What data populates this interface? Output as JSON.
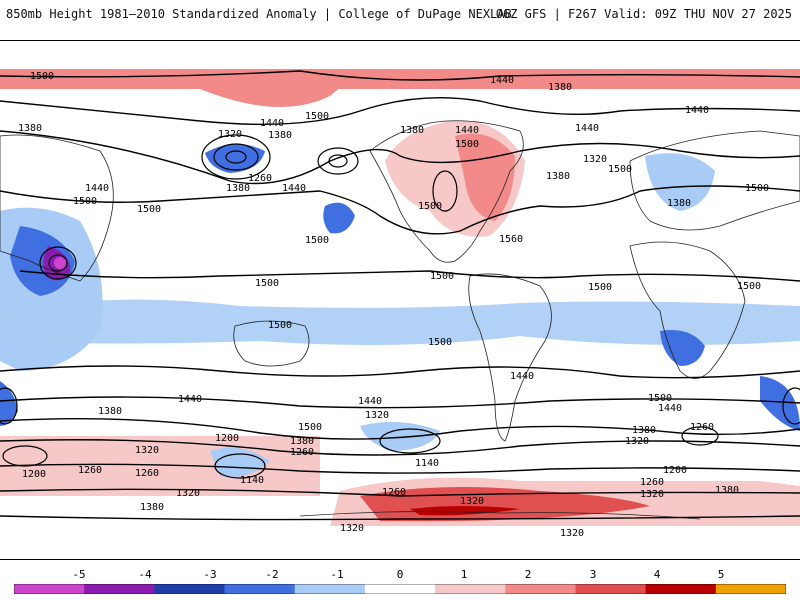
{
  "header": {
    "title": "850mb Height 1981–2010 Standardized Anomaly | College of DuPage NEXLAB",
    "run_info": "06Z GFS | F267 Valid: 09Z THU NOV 27 2025"
  },
  "map": {
    "contour_labels": [
      "1500",
      "1380",
      "1440",
      "1380",
      "1320",
      "1440",
      "1380",
      "1260",
      "1500",
      "1380",
      "1440",
      "1500",
      "1440",
      "1380",
      "1440",
      "1500",
      "1320",
      "1380",
      "1440",
      "1500",
      "1380",
      "1500",
      "1440",
      "1500",
      "1500",
      "1560",
      "1500",
      "1500",
      "1500",
      "1500",
      "1500",
      "1500",
      "1500",
      "1440",
      "1440",
      "1380",
      "1320",
      "1200",
      "1380",
      "1260",
      "1500",
      "1140",
      "1440",
      "1320",
      "1380",
      "1260",
      "1500",
      "1440",
      "1200",
      "1260",
      "1320",
      "1380",
      "1260",
      "1320",
      "1140",
      "1260",
      "1380",
      "1320",
      "1320",
      "1320",
      "1200",
      "1260",
      "1320"
    ]
  },
  "colorbar": {
    "tick_labels": [
      "-5",
      "-4",
      "-3",
      "-2",
      "-1",
      "0",
      "1",
      "2",
      "3",
      "4",
      "5"
    ],
    "colors": [
      "#cc44cc",
      "#8a1ab0",
      "#1f3fa8",
      "#3f6fe0",
      "#a8ccf5",
      "#ffffff",
      "#f7c8c8",
      "#f28a8a",
      "#e05050",
      "#b80000",
      "#f0a000"
    ]
  }
}
